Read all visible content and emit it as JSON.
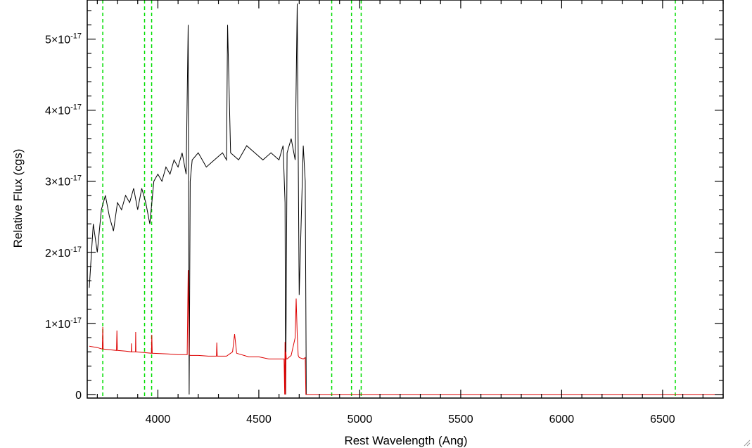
{
  "chart_data": {
    "type": "line",
    "title": "",
    "xlabel": "Rest Wavelength (Ang)",
    "ylabel": "Relative Flux (cgs)",
    "xlim": [
      3650,
      6800
    ],
    "ylim": [
      -5e-19,
      5.55e-17
    ],
    "x_ticks": [
      {
        "value": 4000,
        "label": "4000"
      },
      {
        "value": 4500,
        "label": "4500"
      },
      {
        "value": 5000,
        "label": "5000"
      },
      {
        "value": 5500,
        "label": "5500"
      },
      {
        "value": 6000,
        "label": "6000"
      },
      {
        "value": 6500,
        "label": "6500"
      }
    ],
    "y_ticks": [
      {
        "value": 0,
        "mantissa": "0",
        "exponent": ""
      },
      {
        "value": 1e-17,
        "mantissa": "1×10",
        "exponent": "-17"
      },
      {
        "value": 2e-17,
        "mantissa": "2×10",
        "exponent": "-17"
      },
      {
        "value": 3e-17,
        "mantissa": "3×10",
        "exponent": "-17"
      },
      {
        "value": 4e-17,
        "mantissa": "4×10",
        "exponent": "-17"
      },
      {
        "value": 5e-17,
        "mantissa": "5×10",
        "exponent": "-17"
      }
    ],
    "x_minor_step": 100,
    "y_minor_step": 2e-18,
    "grid": false,
    "legend": "none",
    "reference_lines": {
      "color": "#00dd00",
      "style": "dashed",
      "x": [
        3727,
        3934,
        3969,
        4861,
        4959,
        5007,
        6563
      ]
    },
    "series": [
      {
        "color": "#000000",
        "x": [
          3660,
          3680,
          3700,
          3720,
          3740,
          3760,
          3780,
          3800,
          3820,
          3840,
          3860,
          3880,
          3900,
          3920,
          3940,
          3960,
          3980,
          4000,
          4020,
          4040,
          4060,
          4080,
          4100,
          4120,
          4140,
          4150,
          4155,
          4160,
          4170,
          4200,
          4240,
          4280,
          4320,
          4340,
          4345,
          4360,
          4400,
          4440,
          4480,
          4520,
          4560,
          4600,
          4620,
          4630,
          4633,
          4640,
          4660,
          4680,
          4690,
          4695,
          4700,
          4720,
          4730,
          4735
        ],
        "y": [
          1.5e-17,
          2.4e-17,
          2e-17,
          2.6e-17,
          2.8e-17,
          2.5e-17,
          2.3e-17,
          2.7e-17,
          2.6e-17,
          2.8e-17,
          2.7e-17,
          2.9e-17,
          2.6e-17,
          2.9e-17,
          2.7e-17,
          2.4e-17,
          3e-17,
          3.1e-17,
          3e-17,
          3.2e-17,
          3.1e-17,
          3.3e-17,
          3.2e-17,
          3.4e-17,
          3.1e-17,
          5.2e-17,
          0.0,
          3e-17,
          3.3e-17,
          3.4e-17,
          3.2e-17,
          3.3e-17,
          3.4e-17,
          3.3e-17,
          5.2e-17,
          3.4e-17,
          3.3e-17,
          3.5e-17,
          3.4e-17,
          3.3e-17,
          3.4e-17,
          3.3e-17,
          3.5e-17,
          2.7e-17,
          0.0,
          3.4e-17,
          3.6e-17,
          3.3e-17,
          5.5e-17,
          3.4e-17,
          1.4e-17,
          3.5e-17,
          3e-17,
          0.0
        ]
      },
      {
        "color": "#dd0000",
        "x": [
          3660,
          3700,
          3725,
          3727,
          3729,
          3760,
          3795,
          3797,
          3799,
          3840,
          3868,
          3869,
          3870,
          3889,
          3890,
          3891,
          3930,
          3968,
          3970,
          3972,
          4050,
          4100,
          4145,
          4150,
          4155,
          4160,
          4200,
          4250,
          4290,
          4292,
          4294,
          4340,
          4370,
          4380,
          4390,
          4450,
          4500,
          4550,
          4600,
          4625,
          4628,
          4630,
          4632,
          4634,
          4636,
          4640,
          4660,
          4680,
          4685,
          4690,
          4695,
          4700,
          4720,
          4730,
          4733,
          4736,
          5000,
          6000,
          6800
        ],
        "y": [
          6.8e-18,
          6.6e-18,
          6.4e-18,
          9.5e-18,
          6.4e-18,
          6.3e-18,
          6.2e-18,
          9e-18,
          6.2e-18,
          6.1e-18,
          6e-18,
          7.2e-18,
          6e-18,
          6e-18,
          8.8e-18,
          6e-18,
          5.9e-18,
          5.8e-18,
          8.4e-18,
          5.8e-18,
          5.7e-18,
          5.6e-18,
          5.6e-18,
          1.75e-17,
          5.6e-18,
          5.5e-18,
          5.5e-18,
          5.4e-18,
          5.4e-18,
          7.3e-18,
          5.4e-18,
          5.4e-18,
          6e-18,
          8.5e-18,
          5.8e-18,
          5.3e-18,
          5.3e-18,
          5e-18,
          5e-18,
          5e-18,
          0.0,
          7.4e-18,
          0.0,
          6e-18,
          5e-18,
          5e-18,
          5.5e-18,
          8e-18,
          1.35e-17,
          8.5e-18,
          5.5e-18,
          5.2e-18,
          5e-18,
          5.2e-18,
          0.0,
          0.0,
          0.0,
          0.0,
          0.0
        ]
      }
    ]
  }
}
